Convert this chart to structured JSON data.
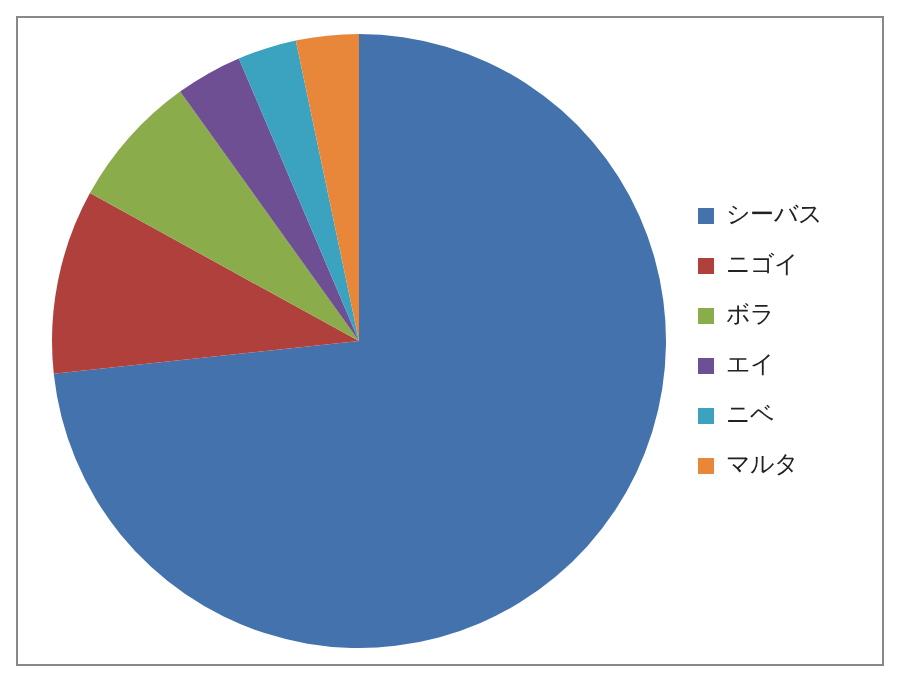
{
  "chart_data": {
    "type": "pie",
    "categories": [
      "シーバス",
      "ニゴイ",
      "ボラ",
      "エイ",
      "ニベ",
      "マルタ"
    ],
    "values": [
      73.3,
      9.7,
      7.1,
      3.5,
      3.1,
      3.3
    ],
    "colors": [
      "#4372ac",
      "#b0403c",
      "#8aac4a",
      "#6e4f93",
      "#3ba2bf",
      "#e8873a"
    ],
    "legend": "right"
  }
}
